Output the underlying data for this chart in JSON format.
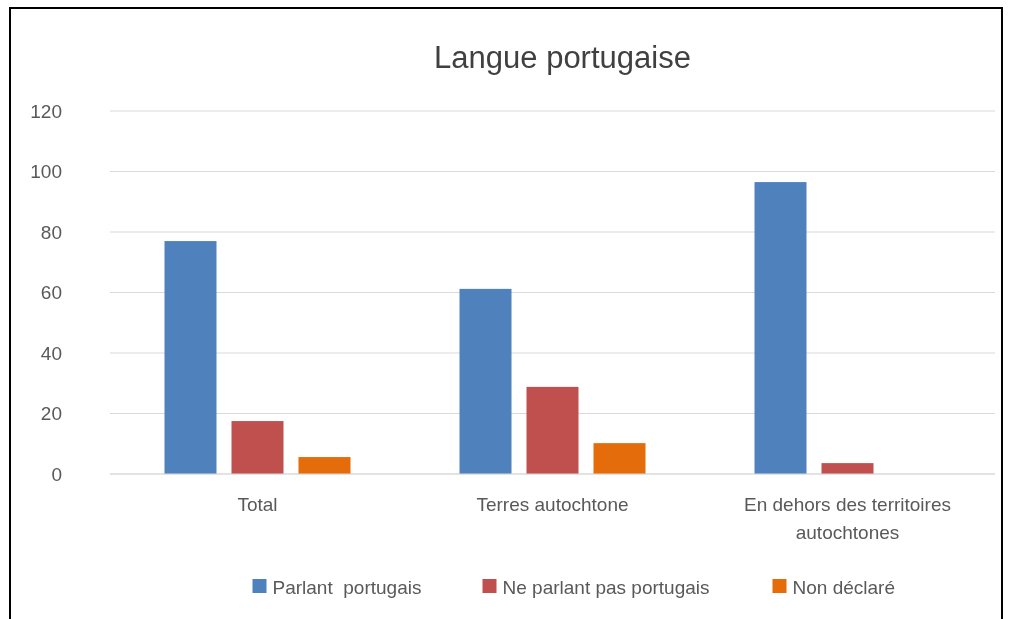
{
  "chart_data": {
    "type": "bar",
    "title": "Langue portugaise",
    "categories": [
      "Total",
      "Terres autochtone",
      "En dehors des territoires autochtones"
    ],
    "series": [
      {
        "name": "Parlant  portugais",
        "color": "#4f81bd",
        "values": [
          77,
          61.2,
          96.5
        ]
      },
      {
        "name": "Ne parlant pas portugais",
        "color": "#c0504d",
        "values": [
          17.5,
          28.8,
          3.6
        ]
      },
      {
        "name": "Non déclaré",
        "color": "#e46c0a",
        "values": [
          5.6,
          10.2,
          0
        ]
      }
    ],
    "ylim": [
      0,
      120
    ],
    "yticks": [
      0,
      20,
      40,
      60,
      80,
      100,
      120
    ],
    "grid": "y",
    "legend": "bottom"
  }
}
